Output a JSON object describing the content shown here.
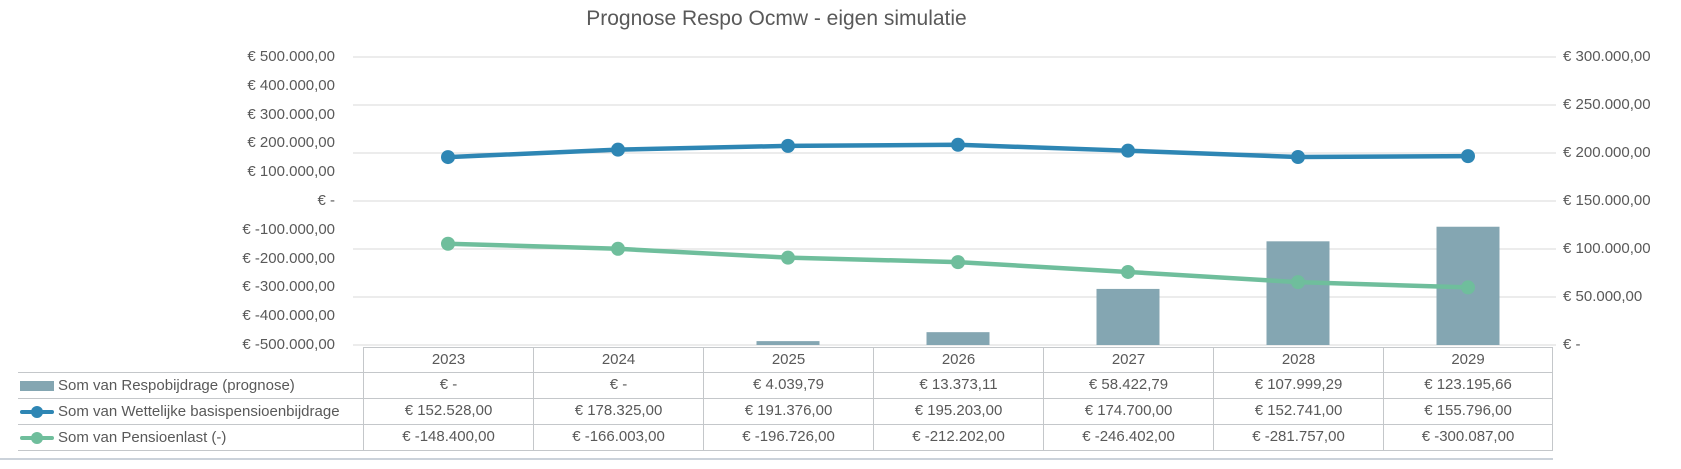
{
  "title": "Prognose Respo Ocmw - eigen simulatie",
  "colors": {
    "bar": "#84A6B2",
    "line_blue": "#2E86B4",
    "line_green": "#6FBE9C",
    "text": "#595959",
    "border": "#C4C7CA",
    "grid": "#D9D9D9",
    "divider": "#CBD2DA"
  },
  "chart_data": {
    "type": "combo",
    "title": "Prognose Respo Ocmw - eigen simulatie",
    "categories": [
      "2023",
      "2024",
      "2025",
      "2026",
      "2027",
      "2028",
      "2029"
    ],
    "series": [
      {
        "id": "respobijdrage-prognose",
        "name": "Som van Respobijdrage (prognose)",
        "type": "bar",
        "axis": "right",
        "color": "#84A6B2",
        "values": [
          0,
          0,
          4039.79,
          13373.11,
          58422.79,
          107999.29,
          123195.66
        ]
      },
      {
        "id": "wettelijke-basispensioenbijdrage",
        "name": "Som van Wettelijke basispensioenbijdrage",
        "type": "line",
        "axis": "left",
        "color": "#2E86B4",
        "values": [
          152528,
          178325,
          191376,
          195203,
          174700,
          152741,
          155796
        ]
      },
      {
        "id": "pensioenlast",
        "name": "Som van Pensioenlast (-)",
        "type": "line",
        "axis": "left",
        "color": "#6FBE9C",
        "values": [
          -148400,
          -166003,
          -196726,
          -212202,
          -246402,
          -281757,
          -300087
        ]
      }
    ],
    "axes": {
      "left": {
        "min": -500000,
        "max": 500000,
        "ticks": [
          "€ 500.000,00",
          "€ 400.000,00",
          "€ 300.000,00",
          "€ 200.000,00",
          "€ 100.000,00",
          "€ -",
          "€ -100.000,00",
          "€ -200.000,00",
          "€ -300.000,00",
          "€ -400.000,00",
          "€ -500.000,00"
        ]
      },
      "right": {
        "min": 0,
        "max": 300000,
        "ticks": [
          "€ 300.000,00",
          "€ 250.000,00",
          "€ 200.000,00",
          "€ 150.000,00",
          "€ 100.000,00",
          "€ 50.000,00",
          "€ -"
        ]
      }
    },
    "grid": true,
    "legend_position": "data-table-left"
  },
  "table": {
    "years": [
      "2023",
      "2024",
      "2025",
      "2026",
      "2027",
      "2028",
      "2029"
    ],
    "rows": [
      {
        "label": "Som van Respobijdrage (prognose)",
        "swatch": "bar",
        "values": [
          "€ -",
          "€ -",
          "€ 4.039,79",
          "€ 13.373,11",
          "€ 58.422,79",
          "€ 107.999,29",
          "€ 123.195,66"
        ]
      },
      {
        "label": "Som van Wettelijke basispensioenbijdrage",
        "swatch": "line",
        "values": [
          "€ 152.528,00",
          "€ 178.325,00",
          "€ 191.376,00",
          "€ 195.203,00",
          "€ 174.700,00",
          "€ 152.741,00",
          "€ 155.796,00"
        ]
      },
      {
        "label": "Som van Pensioenlast (-)",
        "swatch": "line",
        "values": [
          "€ -148.400,00",
          "€ -166.003,00",
          "€ -196.726,00",
          "€ -212.202,00",
          "€ -246.402,00",
          "€ -281.757,00",
          "€ -300.087,00"
        ]
      }
    ]
  }
}
